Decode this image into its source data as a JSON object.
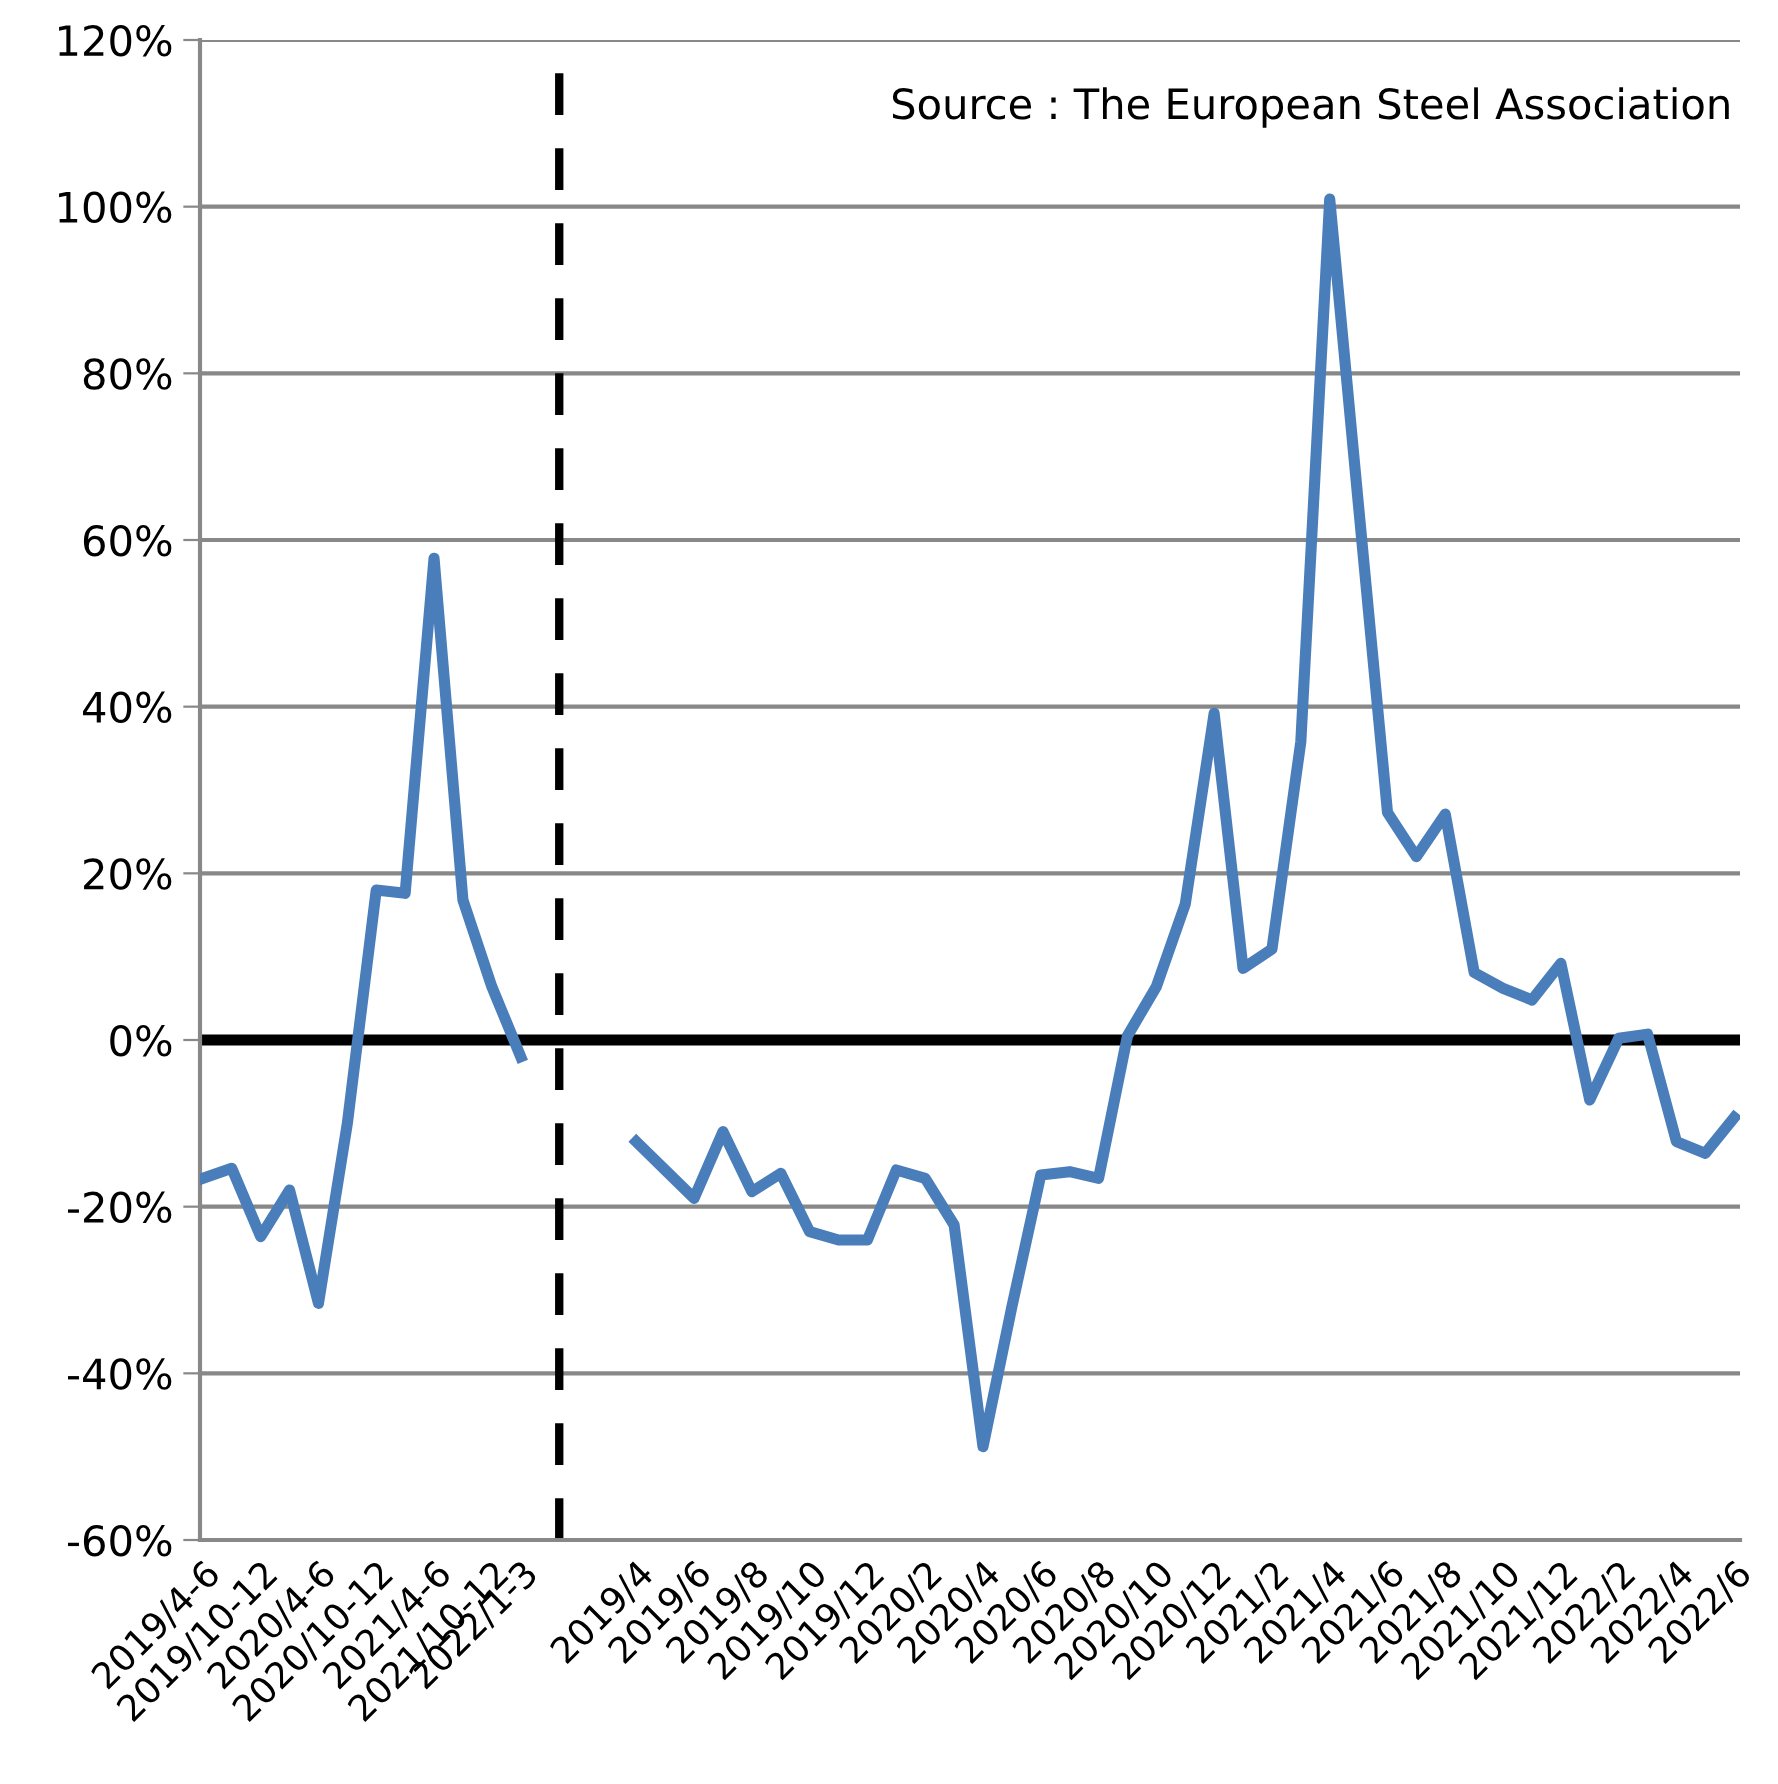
{
  "chart_data": {
    "type": "line",
    "categories": [
      "2019/4-6",
      null,
      "2019/10-12",
      null,
      "2020/4-6",
      null,
      "2020/10-12",
      null,
      "2021/4-6",
      null,
      "2021/10-12",
      "2022/1-3",
      null,
      null,
      null,
      "2019/4",
      null,
      "2019/6",
      null,
      "2019/8",
      null,
      "2019/10",
      null,
      "2019/12",
      null,
      "2020/2",
      null,
      "2020/4",
      null,
      "2020/6",
      null,
      "2020/8",
      null,
      "2020/10",
      null,
      "2020/12",
      null,
      "2021/2",
      null,
      "2021/4",
      null,
      "2021/6",
      null,
      "2021/8",
      null,
      "2021/10",
      null,
      "2021/12",
      null,
      "2022/2",
      null,
      "2022/4",
      null,
      "2022/6"
    ],
    "series": [
      {
        "color": "#4a7ebb",
        "values": [
          -16.6,
          -15.4,
          -23.6,
          -18.0,
          -31.6,
          -10.0,
          18.0,
          17.6,
          57.8,
          16.8,
          6.4,
          -2.0,
          null,
          null,
          null,
          null,
          null,
          null,
          null,
          null,
          null,
          null,
          null,
          null,
          null,
          null,
          null,
          null,
          null,
          null,
          null,
          null,
          null,
          null,
          null,
          null,
          null,
          null,
          null,
          null,
          null,
          null,
          null,
          null,
          null,
          null,
          null,
          null,
          null,
          null,
          null,
          null,
          null,
          null
        ]
      },
      {
        "color": "#4a7ebb",
        "values": [
          null,
          null,
          null,
          null,
          null,
          null,
          null,
          null,
          null,
          null,
          null,
          null,
          null,
          null,
          null,
          -12.2,
          -15.6,
          -19.0,
          -11.0,
          -18.2,
          -16.0,
          -23.0,
          -24.0,
          -24.0,
          -15.6,
          -16.6,
          -22.2,
          -48.8,
          -32.0,
          -16.2,
          -15.8,
          -16.6,
          0.5,
          6.4,
          16.3,
          39.2,
          8.6,
          10.9,
          35.8,
          100.9,
          64.0,
          27.3,
          22.0,
          27.1,
          8.1,
          6.2,
          4.8,
          9.2,
          -7.2,
          0.2,
          0.7,
          -12.2,
          -13.6,
          -9.3
        ]
      }
    ],
    "ylim": [
      -60,
      120
    ],
    "yticks": [
      {
        "value": -60,
        "label": "-60%"
      },
      {
        "value": -40,
        "label": "-40%"
      },
      {
        "value": -20,
        "label": "-20%"
      },
      {
        "value": 0,
        "label": "0%"
      },
      {
        "value": 20,
        "label": "20%"
      },
      {
        "value": 40,
        "label": "40%"
      },
      {
        "value": 60,
        "label": "60%"
      },
      {
        "value": 80,
        "label": "80%"
      },
      {
        "value": 100,
        "label": "100%"
      },
      {
        "value": 120,
        "label": "120%"
      }
    ],
    "grid": "y",
    "marker": "none",
    "line_style": "solid",
    "ref_lines": [
      {
        "axis": "y",
        "value": 0,
        "color": "#000000",
        "line_style": "solid"
      }
    ],
    "annotations": [
      "Source : The European Steel Association"
    ]
  }
}
